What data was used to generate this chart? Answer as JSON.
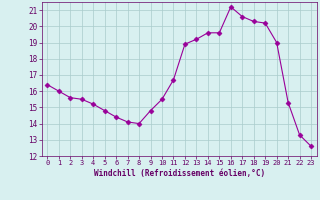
{
  "x": [
    0,
    1,
    2,
    3,
    4,
    5,
    6,
    7,
    8,
    9,
    10,
    11,
    12,
    13,
    14,
    15,
    16,
    17,
    18,
    19,
    20,
    21,
    22,
    23
  ],
  "y": [
    16.4,
    16.0,
    15.6,
    15.5,
    15.2,
    14.8,
    14.4,
    14.1,
    14.0,
    14.8,
    15.5,
    16.7,
    18.9,
    19.2,
    19.6,
    19.6,
    21.2,
    20.6,
    20.3,
    20.2,
    19.0,
    15.3,
    13.3,
    12.6
  ],
  "line_color": "#990099",
  "marker": "D",
  "marker_size": 2.5,
  "bg_color": "#d8f0f0",
  "grid_color": "#aacccc",
  "xlabel": "Windchill (Refroidissement éolien,°C)",
  "xlabel_color": "#660066",
  "tick_color": "#660066",
  "ylim": [
    12,
    21.5
  ],
  "xlim": [
    -0.5,
    23.5
  ],
  "yticks": [
    12,
    13,
    14,
    15,
    16,
    17,
    18,
    19,
    20,
    21
  ],
  "xticks": [
    0,
    1,
    2,
    3,
    4,
    5,
    6,
    7,
    8,
    9,
    10,
    11,
    12,
    13,
    14,
    15,
    16,
    17,
    18,
    19,
    20,
    21,
    22,
    23
  ]
}
